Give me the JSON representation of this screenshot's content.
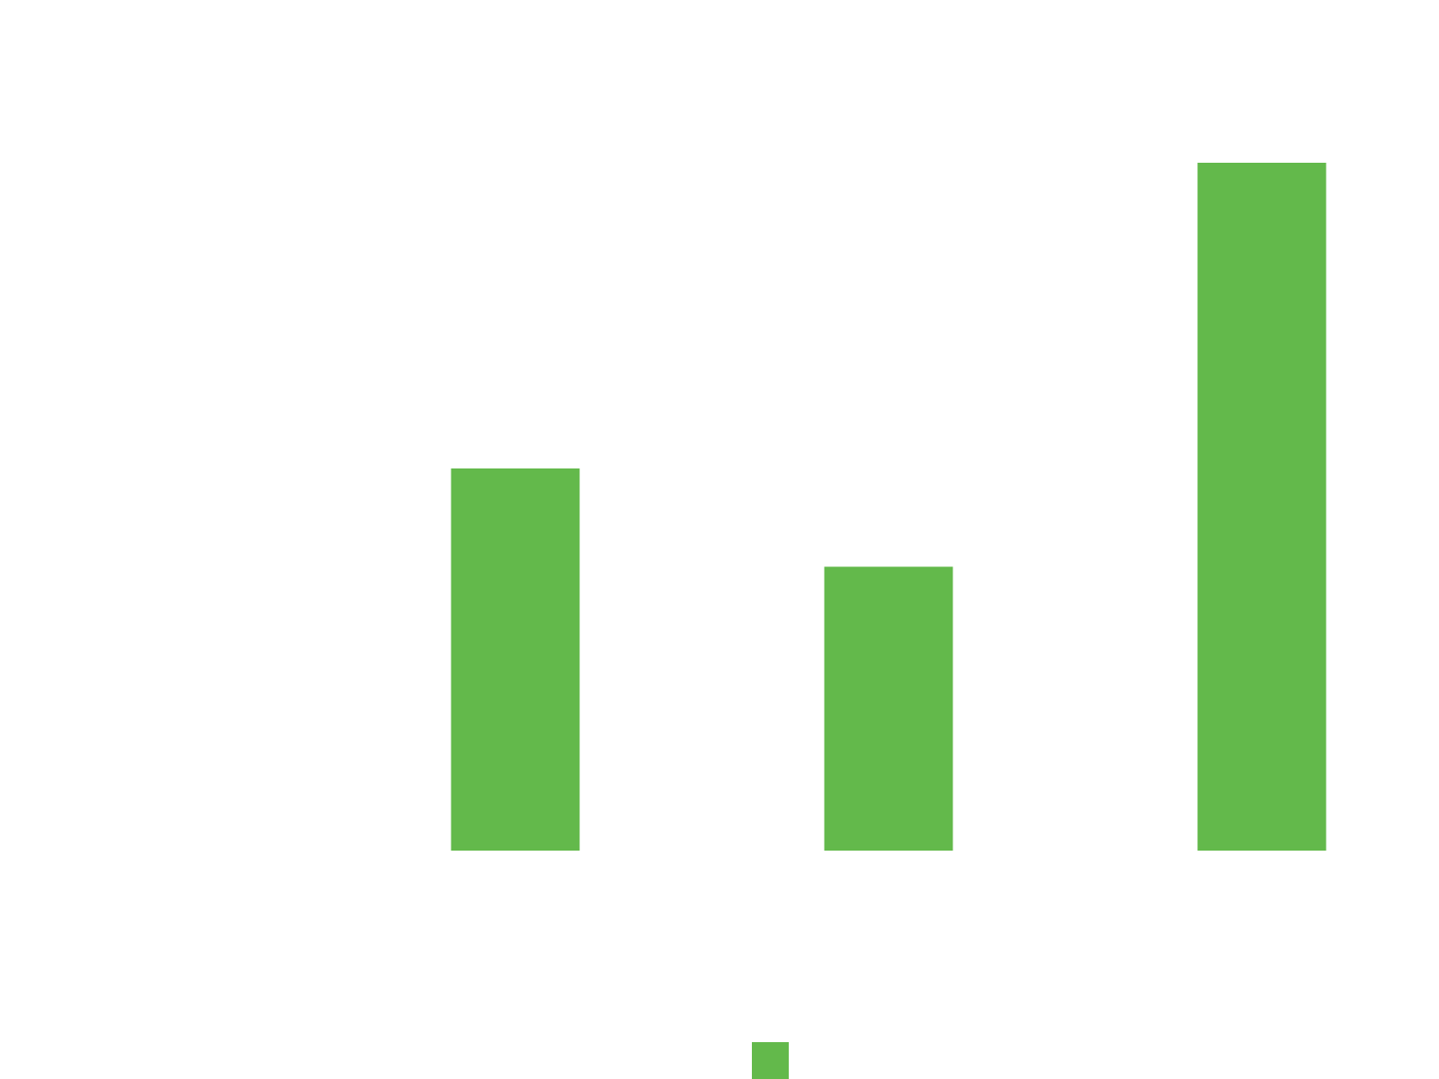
{
  "chart_data": {
    "type": "bar",
    "categories": [
      null,
      null,
      null
    ],
    "values": [
      3.5,
      2.6,
      6.3
    ],
    "color": "#63b94b",
    "ylim": [
      0,
      7
    ],
    "legend": true
  }
}
